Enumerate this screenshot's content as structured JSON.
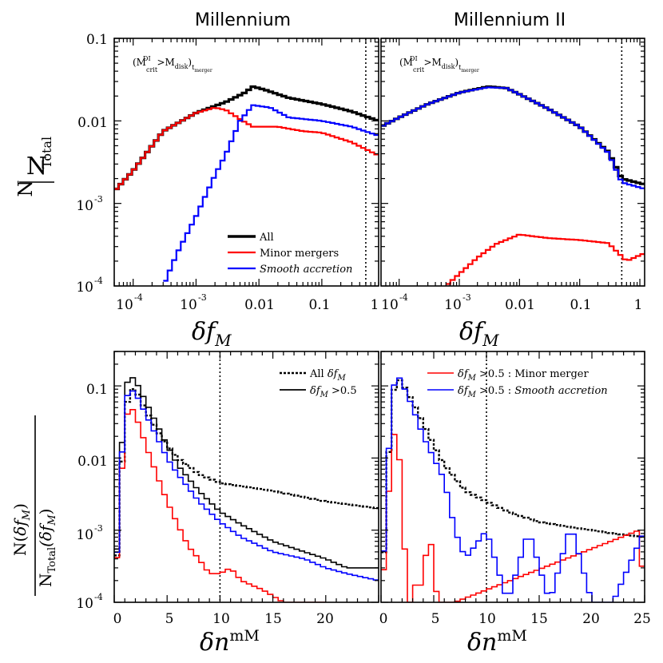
{
  "panel_titles": {
    "left": "Millennium",
    "right": "Millennium II"
  },
  "top": {
    "y_label_num": "N",
    "y_label_den": "N",
    "y_label_den_sub": "Total",
    "x_label": "δf",
    "x_label_sub": "M",
    "annotation": "(M^DI_crit > M_disk)_t_merger",
    "annotation_parts": {
      "a": "(M",
      "b": "DI",
      "c": "crit",
      "d": " >M",
      "e": "disk",
      "f": ")",
      "g": "t",
      "h": "merger"
    },
    "y_ticks": [
      "0.1",
      "0.01",
      "10",
      "-3",
      "10",
      "-4"
    ],
    "x_ticks_left": [
      "10",
      "-4",
      "10",
      "-3",
      "0.01",
      "0.1"
    ],
    "x_ticks_right": [
      "1",
      "10",
      "-4",
      "10",
      "-3",
      "0.01",
      "0.1",
      "1"
    ],
    "legend": {
      "all": "All",
      "minor": "Minor mergers",
      "smooth": "Smooth accretion"
    }
  },
  "bottom": {
    "y_label_num_a": "N(",
    "y_label_num_b": "δf",
    "y_label_num_c": "M",
    "y_label_num_d": ")",
    "y_label_den_a": "N",
    "y_label_den_b": "Total",
    "y_label_den_c": "(δf",
    "y_label_den_d": "M",
    "y_label_den_e": ")",
    "x_label": "δn",
    "x_label_sup": "mM",
    "y_ticks": [
      "0.1",
      "0.01",
      "10",
      "-3",
      "10",
      "-4"
    ],
    "x_ticks": [
      "0",
      "5",
      "10",
      "15",
      "20",
      "25"
    ],
    "legend_left": {
      "all_a": "All ",
      "all_b": "δf",
      "all_c": "M",
      "gt_a": "δf",
      "gt_b": "M",
      "gt_c": " >0.5"
    },
    "legend_right": {
      "minor_a": "δf",
      "minor_b": "M",
      "minor_c": " >0.5 : Minor merger",
      "smooth_a": "δf",
      "smooth_b": "M",
      "smooth_c": " >0.5 : ",
      "smooth_d": "Smooth accretion"
    }
  },
  "colors": {
    "all": "#000000",
    "minor": "#ff0000",
    "smooth": "#0000ff"
  },
  "chart_data": [
    {
      "type": "line",
      "title": "Millennium",
      "step": true,
      "xscale": "log",
      "xlim": [
        5e-05,
        0.8
      ],
      "yscale": "log",
      "ylim": [
        0.0001,
        0.1
      ],
      "xlabel": "δf_M",
      "ylabel": "N/N_Total",
      "vline": 0.5,
      "series": [
        {
          "name": "All",
          "color": "#000000",
          "x": [
            5e-05,
            0.0001,
            0.0003,
            0.001,
            0.003,
            0.006,
            0.008,
            0.012,
            0.03,
            0.1,
            0.3,
            0.8
          ],
          "y": [
            0.0014,
            0.0025,
            0.0075,
            0.0125,
            0.017,
            0.022,
            0.026,
            0.024,
            0.019,
            0.016,
            0.013,
            0.01
          ]
        },
        {
          "name": "Minor mergers",
          "color": "#ff0000",
          "x": [
            5e-05,
            0.0001,
            0.0003,
            0.001,
            0.002,
            0.003,
            0.005,
            0.008,
            0.02,
            0.05,
            0.1,
            0.3,
            0.8
          ],
          "y": [
            0.0014,
            0.0025,
            0.0075,
            0.0125,
            0.0145,
            0.0135,
            0.0105,
            0.0085,
            0.0085,
            0.0075,
            0.0072,
            0.0055,
            0.0038
          ]
        },
        {
          "name": "Smooth accretion",
          "color": "#0000ff",
          "x": [
            0.0003,
            0.0005,
            0.001,
            0.002,
            0.003,
            0.005,
            0.008,
            0.015,
            0.03,
            0.1,
            0.3,
            0.8
          ],
          "y": [
            0.0001,
            0.00025,
            0.0007,
            0.0022,
            0.004,
            0.01,
            0.0155,
            0.0145,
            0.011,
            0.01,
            0.0085,
            0.0066
          ]
        }
      ]
    },
    {
      "type": "line",
      "title": "Millennium II",
      "step": true,
      "xscale": "log",
      "xlim": [
        5e-05,
        1.2
      ],
      "yscale": "log",
      "ylim": [
        0.0001,
        0.1
      ],
      "xlabel": "δf_M",
      "vline": 0.5,
      "series": [
        {
          "name": "All",
          "color": "#000000",
          "x": [
            5e-05,
            0.0001,
            0.0003,
            0.001,
            0.003,
            0.006,
            0.01,
            0.03,
            0.1,
            0.3,
            0.5,
            1.2
          ],
          "y": [
            0.0085,
            0.011,
            0.016,
            0.022,
            0.026,
            0.025,
            0.021,
            0.014,
            0.0085,
            0.0042,
            0.002,
            0.0017
          ]
        },
        {
          "name": "Smooth accretion",
          "color": "#0000ff",
          "x": [
            5e-05,
            0.0001,
            0.0003,
            0.001,
            0.003,
            0.006,
            0.01,
            0.03,
            0.1,
            0.3,
            0.5,
            1.2
          ],
          "y": [
            0.0085,
            0.011,
            0.016,
            0.022,
            0.0255,
            0.025,
            0.021,
            0.014,
            0.0085,
            0.0041,
            0.0018,
            0.0015
          ]
        },
        {
          "name": "Minor mergers",
          "color": "#ff0000",
          "x": [
            0.0006,
            0.001,
            0.002,
            0.004,
            0.01,
            0.03,
            0.1,
            0.3,
            0.6,
            1.2
          ],
          "y": [
            0.0001,
            0.00014,
            0.00022,
            0.00032,
            0.00042,
            0.00038,
            0.00036,
            0.00033,
            0.0002,
            0.00025
          ]
        }
      ]
    },
    {
      "type": "line",
      "title": "",
      "step": true,
      "xscale": "linear",
      "xlim": [
        0,
        25
      ],
      "yscale": "log",
      "ylim": [
        0.0001,
        0.3
      ],
      "xlabel": "δn^mM",
      "ylabel": "N(δf_M)/N_Total(δf_M)",
      "vline": 10,
      "series": [
        {
          "name": "All δf_M",
          "color": "#000000",
          "dashed": true,
          "x": [
            0,
            1,
            1.5,
            2,
            3,
            4,
            5,
            6,
            8,
            10,
            15,
            20,
            25
          ],
          "y": [
            0.0001,
            0.04,
            0.09,
            0.09,
            0.045,
            0.025,
            0.015,
            0.01,
            0.006,
            0.0045,
            0.0035,
            0.0025,
            0.002
          ]
        },
        {
          "name": "δf_M >0.5",
          "color": "#000000",
          "x": [
            0,
            1,
            1.5,
            2,
            3,
            4,
            5,
            6,
            8,
            10,
            12,
            15,
            18,
            20,
            22,
            25
          ],
          "y": [
            0.0001,
            0.09,
            0.14,
            0.12,
            0.06,
            0.03,
            0.015,
            0.008,
            0.0035,
            0.0018,
            0.0012,
            0.0007,
            0.0005,
            0.0004,
            0.0003,
            0.0003
          ]
        },
        {
          "name": "Minor merger",
          "color": "#ff0000",
          "x": [
            0,
            1,
            1.5,
            2,
            3,
            4,
            5,
            6,
            7,
            8,
            9,
            10,
            11,
            12,
            14,
            16,
            20
          ],
          "y": [
            0.0001,
            0.03,
            0.055,
            0.04,
            0.015,
            0.006,
            0.0025,
            0.0012,
            0.0006,
            0.0004,
            0.00025,
            0.00025,
            0.0003,
            0.0002,
            0.00015,
            0.0001,
            0.0001
          ]
        },
        {
          "name": "Smooth accretion",
          "color": "#0000ff",
          "x": [
            0,
            1,
            1.5,
            2,
            3,
            4,
            5,
            6,
            8,
            10,
            12,
            15,
            18,
            20,
            22,
            25
          ],
          "y": [
            0.0001,
            0.06,
            0.09,
            0.08,
            0.04,
            0.02,
            0.01,
            0.006,
            0.0025,
            0.0013,
            0.0008,
            0.0005,
            0.0004,
            0.0003,
            0.00025,
            0.0002
          ]
        }
      ]
    },
    {
      "type": "line",
      "title": "",
      "step": true,
      "xscale": "linear",
      "xlim": [
        0,
        25
      ],
      "yscale": "log",
      "ylim": [
        0.0001,
        0.3
      ],
      "xlabel": "δn^mM",
      "vline": 10,
      "series": [
        {
          "name": "All δf_M",
          "color": "#000000",
          "dashed": true,
          "x": [
            0,
            1,
            1.5,
            2,
            3,
            4,
            5,
            6,
            8,
            10,
            12,
            15,
            18,
            20,
            22,
            25
          ],
          "y": [
            0.0001,
            0.06,
            0.13,
            0.11,
            0.06,
            0.03,
            0.015,
            0.008,
            0.0035,
            0.0025,
            0.0018,
            0.0013,
            0.0011,
            0.001,
            0.0009,
            0.0008
          ]
        },
        {
          "name": "Minor merger",
          "color": "#ff0000",
          "x": [
            0,
            0.5,
            1,
            1.5,
            2,
            2.5,
            3,
            3.5,
            4,
            4.5,
            5,
            5.5,
            6,
            7,
            24.5,
            25
          ],
          "y": [
            0.0001,
            0.0008,
            0.015,
            0.03,
            0.003,
            0.0001,
            0.0001,
            0.0003,
            0.0001,
            0.002,
            0.0002,
            0.0001,
            0.0001,
            0.0001,
            0.001,
            0.0001
          ]
        },
        {
          "name": "Smooth accretion",
          "color": "#0000ff",
          "x": [
            0,
            1,
            1.5,
            2,
            3,
            4,
            5,
            6,
            7,
            8,
            10,
            12,
            14,
            16,
            18,
            20,
            22,
            25
          ],
          "y": [
            0.0001,
            0.07,
            0.15,
            0.11,
            0.05,
            0.02,
            0.01,
            0.005,
            0.001,
            0.0004,
            0.001,
            0.0001,
            0.001,
            0.0001,
            0.0012,
            0.0001,
            0.0001,
            0.001
          ]
        }
      ]
    }
  ]
}
